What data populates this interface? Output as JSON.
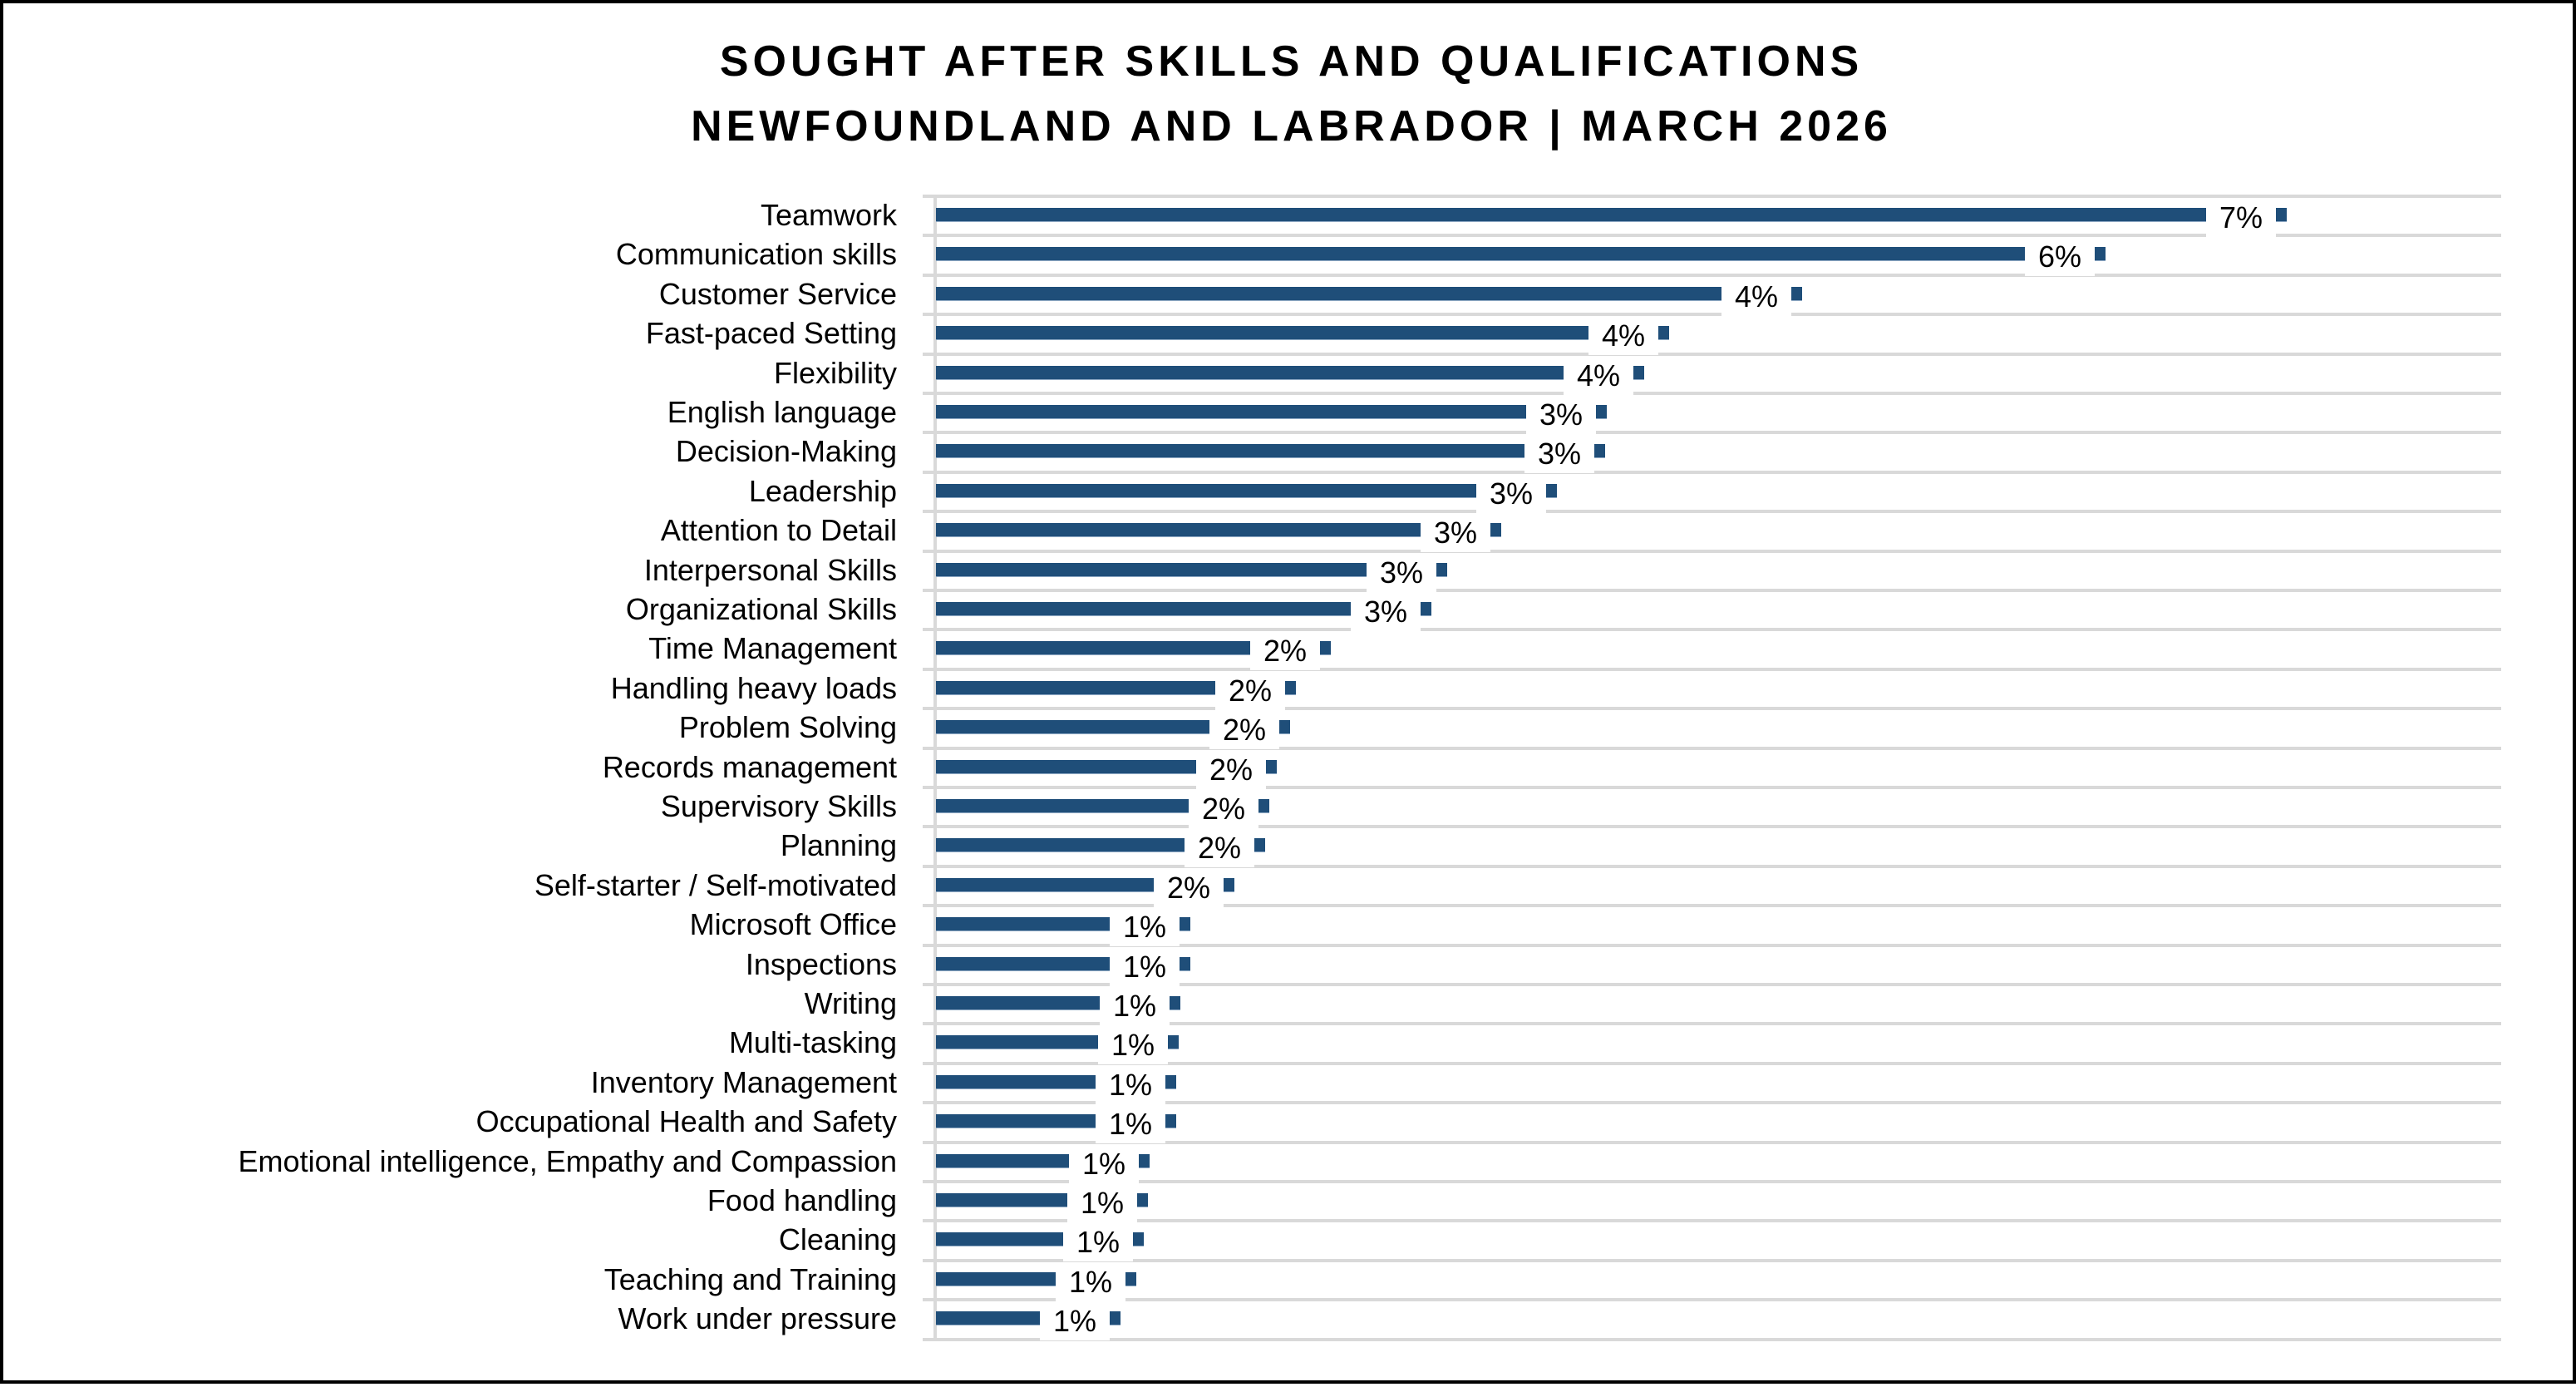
{
  "title": {
    "line1": "SOUGHT AFTER SKILLS AND QUALIFICATIONS",
    "line2": "NEWFOUNDLAND AND LABRADOR | MARCH 2026"
  },
  "colors": {
    "bar": "#1F4E79",
    "gridline": "#D9D9D9",
    "border": "#000000"
  },
  "chart_data": {
    "type": "bar",
    "orientation": "horizontal",
    "title": "SOUGHT AFTER SKILLS AND QUALIFICATIONS — NEWFOUNDLAND AND LABRADOR | MARCH 2026",
    "xlabel": "",
    "ylabel": "",
    "xlim": [
      0,
      8.1
    ],
    "grid": true,
    "legend": null,
    "value_format": "percent",
    "categories": [
      "Teamwork",
      "Communication skills",
      "Customer Service",
      "Fast-paced Setting",
      "Flexibility",
      "English language",
      "Decision-Making",
      "Leadership",
      "Attention to Detail",
      "Interpersonal Skills",
      "Organizational Skills",
      "Time Management",
      "Handling heavy loads",
      "Problem Solving",
      "Records management",
      "Supervisory Skills",
      "Planning",
      "Self-starter / Self-motivated",
      "Microsoft Office",
      "Inspections",
      "Writing",
      "Multi-tasking",
      "Inventory Management",
      "Occupational Health and Safety",
      "Emotional intelligence, Empathy and Compassion",
      "Food handling",
      "Cleaning",
      "Teaching and Training",
      "Work under pressure"
    ],
    "values": [
      7.0,
      6.06,
      4.49,
      3.8,
      3.67,
      3.48,
      3.47,
      3.22,
      2.93,
      2.65,
      2.57,
      2.05,
      1.87,
      1.84,
      1.77,
      1.73,
      1.71,
      1.55,
      1.32,
      1.32,
      1.27,
      1.26,
      1.25,
      1.25,
      1.11,
      1.1,
      1.08,
      1.04,
      0.96
    ],
    "data_labels": [
      "7%",
      "6%",
      "4%",
      "4%",
      "4%",
      "3%",
      "3%",
      "3%",
      "3%",
      "3%",
      "3%",
      "2%",
      "2%",
      "2%",
      "2%",
      "2%",
      "2%",
      "2%",
      "1%",
      "1%",
      "1%",
      "1%",
      "1%",
      "1%",
      "1%",
      "1%",
      "1%",
      "1%",
      "1%"
    ]
  }
}
